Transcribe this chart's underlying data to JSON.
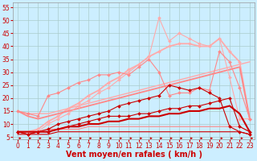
{
  "background_color": "#cceeff",
  "grid_color": "#aacccc",
  "xlabel": "Vent moyen/en rafales ( km/h )",
  "xlim": [
    -0.5,
    23.5
  ],
  "ylim": [
    4,
    57
  ],
  "yticks": [
    5,
    10,
    15,
    20,
    25,
    30,
    35,
    40,
    45,
    50,
    55
  ],
  "xticks": [
    0,
    1,
    2,
    3,
    4,
    5,
    6,
    7,
    8,
    9,
    10,
    11,
    12,
    13,
    14,
    15,
    16,
    17,
    18,
    19,
    20,
    21,
    22,
    23
  ],
  "lines": [
    {
      "x": [
        0,
        1,
        2,
        3,
        4,
        5,
        6,
        7,
        8,
        9,
        10,
        11,
        12,
        13,
        14,
        15,
        16,
        17,
        18,
        19,
        20,
        21,
        22,
        23
      ],
      "y": [
        15,
        14,
        14,
        14,
        15,
        16,
        17,
        18,
        19,
        20,
        21,
        22,
        23,
        24,
        25,
        26,
        27,
        28,
        29,
        30,
        31,
        32,
        33,
        34
      ],
      "color": "#ffaaaa",
      "lw": 1.0,
      "marker": null,
      "markersize": 0,
      "zorder": 2
    },
    {
      "x": [
        0,
        1,
        2,
        3,
        4,
        5,
        6,
        7,
        8,
        9,
        10,
        11,
        12,
        13,
        14,
        15,
        16,
        17,
        18,
        19,
        20,
        21,
        22,
        23
      ],
      "y": [
        7,
        6,
        7,
        10,
        12,
        14,
        17,
        19,
        22,
        24,
        27,
        30,
        33,
        36,
        51,
        42,
        45,
        43,
        41,
        40,
        43,
        28,
        12,
        12
      ],
      "color": "#ffaaaa",
      "lw": 0.8,
      "marker": "D",
      "markersize": 2.0,
      "zorder": 3
    },
    {
      "x": [
        0,
        1,
        2,
        3,
        4,
        5,
        6,
        7,
        8,
        9,
        10,
        11,
        12,
        13,
        14,
        15,
        16,
        17,
        18,
        19,
        20,
        21,
        22,
        23
      ],
      "y": [
        7,
        7,
        8,
        11,
        13,
        16,
        18,
        21,
        23,
        26,
        28,
        31,
        33,
        36,
        38,
        40,
        41,
        41,
        40,
        40,
        43,
        38,
        34,
        12
      ],
      "color": "#ffaaaa",
      "lw": 1.3,
      "marker": "D",
      "markersize": 2.0,
      "zorder": 2
    },
    {
      "x": [
        0,
        1,
        2,
        3,
        4,
        5,
        6,
        7,
        8,
        9,
        10,
        11,
        12,
        13,
        14,
        15,
        16,
        17,
        18,
        19,
        20,
        21,
        22,
        23
      ],
      "y": [
        15,
        13,
        12,
        13,
        14,
        15,
        16,
        17,
        18,
        19,
        20,
        21,
        22,
        23,
        24,
        25,
        26,
        27,
        28,
        29,
        30,
        31,
        32,
        12
      ],
      "color": "#ff8888",
      "lw": 1.3,
      "marker": null,
      "markersize": 0,
      "zorder": 2
    },
    {
      "x": [
        0,
        1,
        2,
        3,
        4,
        5,
        6,
        7,
        8,
        9,
        10,
        11,
        12,
        13,
        14,
        15,
        16,
        17,
        18,
        19,
        20,
        21,
        22,
        23
      ],
      "y": [
        15,
        14,
        13,
        21,
        22,
        24,
        26,
        27,
        29,
        29,
        30,
        29,
        32,
        35,
        30,
        21,
        22,
        22,
        24,
        23,
        38,
        34,
        24,
        12
      ],
      "color": "#ff8888",
      "lw": 0.8,
      "marker": "D",
      "markersize": 2.0,
      "zorder": 3
    },
    {
      "x": [
        0,
        1,
        2,
        3,
        4,
        5,
        6,
        7,
        8,
        9,
        10,
        11,
        12,
        13,
        14,
        15,
        16,
        17,
        18,
        19,
        20,
        21,
        22,
        23
      ],
      "y": [
        7,
        7,
        7,
        8,
        8,
        8,
        8,
        9,
        9,
        9,
        9,
        9,
        9,
        9,
        9,
        9,
        9,
        9,
        9,
        9,
        9,
        9,
        9,
        7
      ],
      "color": "#ff8888",
      "lw": 0.8,
      "marker": null,
      "markersize": 0,
      "zorder": 2
    },
    {
      "x": [
        0,
        1,
        2,
        3,
        4,
        5,
        6,
        7,
        8,
        9,
        10,
        11,
        12,
        13,
        14,
        15,
        16,
        17,
        18,
        19,
        20,
        21,
        22,
        23
      ],
      "y": [
        7,
        6,
        7,
        8,
        10,
        11,
        12,
        13,
        14,
        15,
        17,
        18,
        19,
        20,
        21,
        25,
        24,
        23,
        24,
        22,
        20,
        9,
        7,
        6
      ],
      "color": "#cc0000",
      "lw": 0.8,
      "marker": "D",
      "markersize": 2.0,
      "zorder": 5
    },
    {
      "x": [
        0,
        1,
        2,
        3,
        4,
        5,
        6,
        7,
        8,
        9,
        10,
        11,
        12,
        13,
        14,
        15,
        16,
        17,
        18,
        19,
        20,
        21,
        22,
        23
      ],
      "y": [
        7,
        6,
        7,
        7,
        8,
        9,
        10,
        11,
        12,
        13,
        13,
        13,
        14,
        14,
        15,
        16,
        16,
        17,
        17,
        18,
        19,
        20,
        9,
        7
      ],
      "color": "#cc0000",
      "lw": 0.8,
      "marker": "D",
      "markersize": 2.0,
      "zorder": 4
    },
    {
      "x": [
        0,
        1,
        2,
        3,
        4,
        5,
        6,
        7,
        8,
        9,
        10,
        11,
        12,
        13,
        14,
        15,
        16,
        17,
        18,
        19,
        20,
        21,
        22,
        23
      ],
      "y": [
        7,
        7,
        7,
        7,
        8,
        9,
        9,
        10,
        10,
        11,
        11,
        12,
        12,
        13,
        13,
        14,
        14,
        15,
        15,
        16,
        16,
        17,
        14,
        7
      ],
      "color": "#cc0000",
      "lw": 1.5,
      "marker": null,
      "markersize": 0,
      "zorder": 3
    },
    {
      "x": [
        0,
        1,
        2,
        3,
        4,
        5,
        6,
        7,
        8,
        9,
        10,
        11,
        12,
        13,
        14,
        15,
        16,
        17,
        18,
        19,
        20,
        21,
        22,
        23
      ],
      "y": [
        6,
        6,
        6,
        6,
        7,
        7,
        7,
        7,
        7,
        7,
        7,
        7,
        7,
        7,
        7,
        7,
        7,
        7,
        7,
        7,
        7,
        7,
        7,
        6
      ],
      "color": "#cc0000",
      "lw": 0.8,
      "marker": null,
      "markersize": 0,
      "zorder": 2
    }
  ],
  "axis_fontsize": 7,
  "tick_fontsize": 5.5
}
